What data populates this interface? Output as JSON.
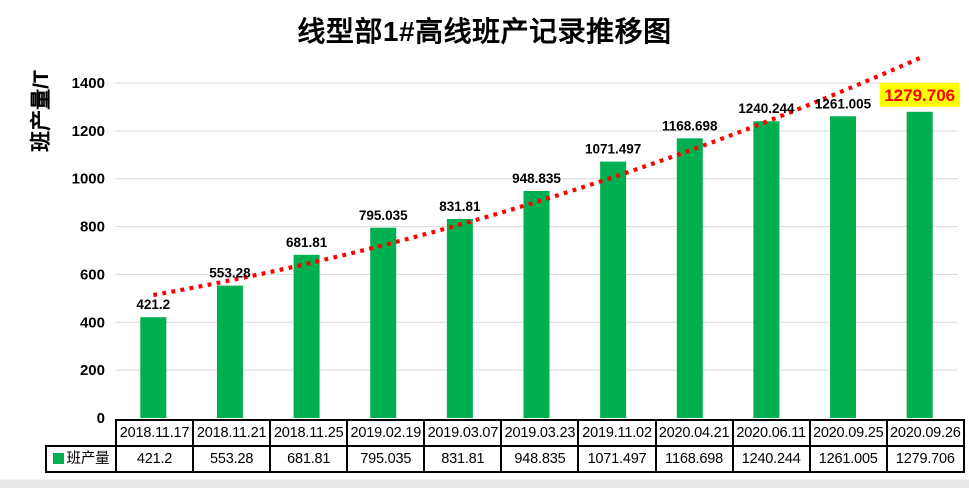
{
  "chart_data": {
    "type": "bar",
    "title": "线型部1#高线班产记录推移图",
    "ylabel": "班产量/T",
    "xlabel": "",
    "series_name": "班产量",
    "categories": [
      "2018.11.17",
      "2018.11.21",
      "2018.11.25",
      "2019.02.19",
      "2019.03.07",
      "2019.03.23",
      "2019.11.02",
      "2020.04.21",
      "2020.06.11",
      "2020.09.25",
      "2020.09.26"
    ],
    "values": [
      421.2,
      553.28,
      681.81,
      795.035,
      831.81,
      948.835,
      1071.497,
      1168.698,
      1240.244,
      1261.005,
      1279.706
    ],
    "values_text": [
      "421.2",
      "553.28",
      "681.81",
      "795.035",
      "831.81",
      "948.835",
      "1071.497",
      "1168.698",
      "1240.244",
      "1261.005",
      "1279.706"
    ],
    "ylim": [
      0,
      1500
    ],
    "yticks": [
      0,
      200,
      400,
      600,
      800,
      1000,
      1200,
      1400
    ],
    "grid": true,
    "legend_position": "table-left",
    "bar_color": "#00B050",
    "gridline_color": "#D9D9D9",
    "trendline": {
      "style": "dotted",
      "color": "#FF0000",
      "anchor_values": [
        514,
        903,
        1504
      ]
    },
    "highlight_last": {
      "background": "#FFFF00",
      "text_color": "#FF0000"
    }
  },
  "table": {
    "legend_label": "班产量"
  },
  "page": {
    "background": "#FFFFFF",
    "bottom_strip_color": "#E9E9E9"
  }
}
